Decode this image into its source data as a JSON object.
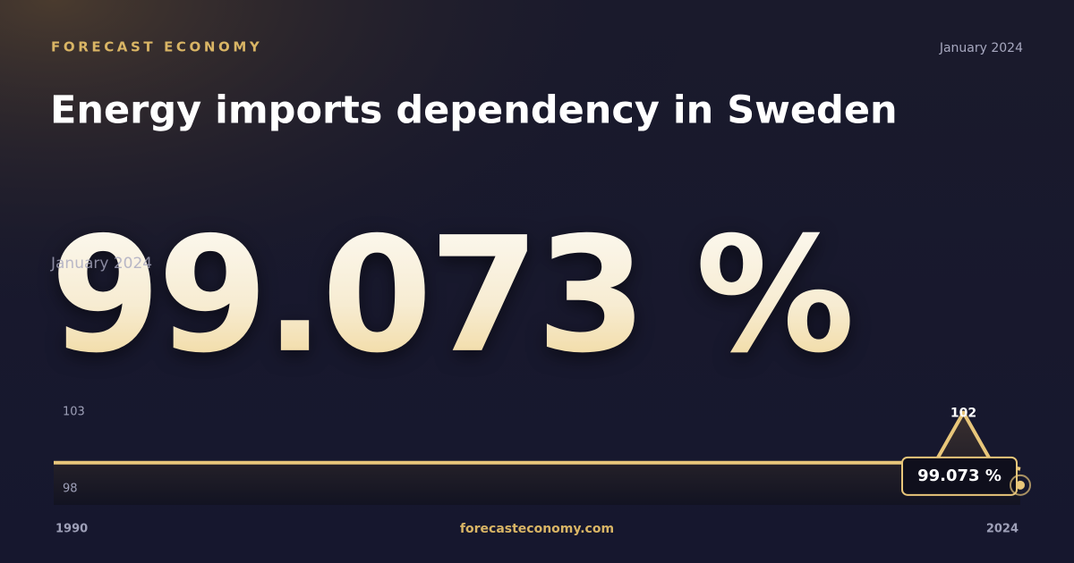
{
  "brand": "FORECAST ECONOMY",
  "date": "January 2024",
  "title": "Energy imports dependency in Sweden",
  "footer": "forecasteconomy.com",
  "chart_data": {
    "type": "line",
    "x": [
      1990,
      2020,
      2021,
      2022,
      2023,
      2024
    ],
    "values": [
      99.4,
      99.4,
      99.4,
      102,
      99.4,
      99.073
    ],
    "value_labels": [
      null,
      null,
      null,
      null,
      null,
      "99.073 %"
    ],
    "color": "#e8c67a",
    "xlim": [
      1990,
      2024
    ],
    "xticks": [
      1990,
      2024
    ],
    "ylim": [
      98,
      103
    ],
    "yticks": [
      98,
      103
    ]
  }
}
